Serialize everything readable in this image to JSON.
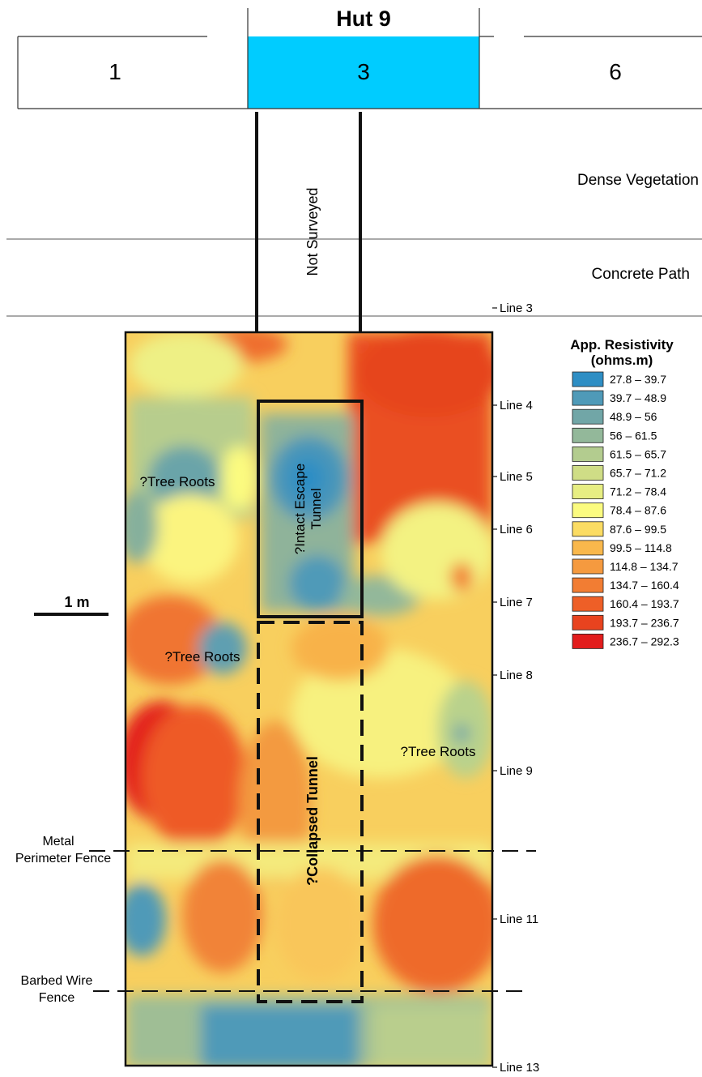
{
  "hut": {
    "title": "Hut 9",
    "rooms": [
      "1",
      "3",
      "6"
    ],
    "highlight_color": "#00ccff"
  },
  "zones": {
    "dense_vegetation": "Dense Vegetation",
    "concrete_path": "Concrete Path",
    "not_surveyed": "Not Surveyed"
  },
  "scale_bar": {
    "label": "1 m"
  },
  "survey_lines": [
    "Line 3",
    "Line 4",
    "Line 5",
    "Line 6",
    "Line 7",
    "Line 8",
    "Line 9",
    "Line 11",
    "Line 13"
  ],
  "annotations": {
    "tree_roots_1": "?Tree Roots",
    "tree_roots_2": "?Tree Roots",
    "tree_roots_3": "?Tree Roots",
    "intact_tunnel": "?Intact Escape Tunnel",
    "intact_tunnel_line1": "?Intact Escape",
    "intact_tunnel_line2": "Tunnel",
    "collapsed_tunnel": "?Collapsed Tunnel"
  },
  "fences": {
    "metal_line1": "Metal",
    "metal_line2": "Perimeter Fence",
    "barbed_line1": "Barbed Wire",
    "barbed_line2": "Fence"
  },
  "legend": {
    "title_line1": "App. Resistivity",
    "title_line2": "(ohms.m)",
    "items": [
      {
        "label": "27.8 – 39.7",
        "color": "#2e8ec4"
      },
      {
        "label": "39.7 – 48.9",
        "color": "#4f9ab8"
      },
      {
        "label": "48.9 – 56",
        "color": "#71a6a7"
      },
      {
        "label": "56 – 61.5",
        "color": "#93b89a"
      },
      {
        "label": "61.5 – 65.7",
        "color": "#b3cc8f"
      },
      {
        "label": "65.7 – 71.2",
        "color": "#cfdd86"
      },
      {
        "label": "71.2 – 78.4",
        "color": "#e7ee82"
      },
      {
        "label": "78.4 – 87.6",
        "color": "#fbfb80"
      },
      {
        "label": "87.6 – 99.5",
        "color": "#fbdc63"
      },
      {
        "label": "99.5 – 114.8",
        "color": "#f9b84c"
      },
      {
        "label": "114.8 – 134.7",
        "color": "#f59a3f"
      },
      {
        "label": "134.7 – 160.4",
        "color": "#f27d33"
      },
      {
        "label": "160.4 – 193.7",
        "color": "#ee5f27"
      },
      {
        "label": "193.7 – 236.7",
        "color": "#e8431f"
      },
      {
        "label": "236.7 – 292.3",
        "color": "#e21c1c"
      }
    ]
  }
}
